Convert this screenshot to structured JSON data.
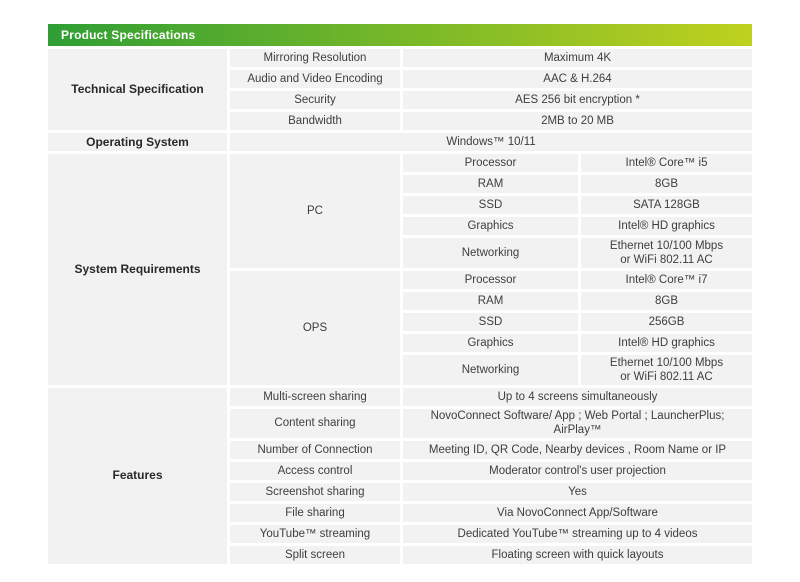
{
  "theme": {
    "brand-green": "#2f9e34",
    "brand-lime": "#bfd11e",
    "cell-bg": "#f2f2f3",
    "cell-text": "#3e3e40",
    "title-text": "#ffffff"
  },
  "header": {
    "title": "Product Specifications"
  },
  "table": {
    "sections": [
      {
        "title": "Technical Specification",
        "rows": [
          {
            "label": "Mirroring Resolution",
            "value": "Maximum 4K"
          },
          {
            "label": "Audio and Video Encoding",
            "value": "AAC & H.264"
          },
          {
            "label": "Security",
            "value": "AES 256 bit encryption *"
          },
          {
            "label": "Bandwidth",
            "value": "2MB to 20 MB"
          }
        ]
      },
      {
        "title": "Operating System",
        "value": "Windows™ 10/11"
      },
      {
        "title": "System Requirements",
        "groups": [
          {
            "name": "PC",
            "specs": [
              {
                "label": "Processor",
                "value": "Intel® Core™ i5"
              },
              {
                "label": "RAM",
                "value": "8GB"
              },
              {
                "label": "SSD",
                "value": "SATA 128GB"
              },
              {
                "label": "Graphics",
                "value": "Intel® HD graphics"
              },
              {
                "label": "Networking",
                "value": "Ethernet 10/100 Mbps\nor WiFi 802.11 AC"
              }
            ]
          },
          {
            "name": "OPS",
            "specs": [
              {
                "label": "Processor",
                "value": "Intel® Core™ i7"
              },
              {
                "label": "RAM",
                "value": "8GB"
              },
              {
                "label": "SSD",
                "value": "256GB"
              },
              {
                "label": "Graphics",
                "value": "Intel® HD graphics"
              },
              {
                "label": "Networking",
                "value": "Ethernet 10/100 Mbps\nor WiFi 802.11 AC"
              }
            ]
          }
        ]
      },
      {
        "title": "Features",
        "rows": [
          {
            "label": "Multi-screen sharing",
            "value": "Up to 4 screens simultaneously"
          },
          {
            "label": "Content sharing",
            "value": "NovoConnect Software/ App ; Web Portal ; LauncherPlus; AirPlay™"
          },
          {
            "label": "Number of Connection",
            "value": "Meeting ID, QR Code, Nearby devices , Room Name or IP"
          },
          {
            "label": "Access control",
            "value": "Moderator control's user projection"
          },
          {
            "label": "Screenshot sharing",
            "value": "Yes"
          },
          {
            "label": "File sharing",
            "value": "Via NovoConnect App/Software"
          },
          {
            "label": "YouTube™ streaming",
            "value": "Dedicated YouTube™ streaming up to 4 videos"
          },
          {
            "label": "Split screen",
            "value": "Floating screen with quick layouts"
          }
        ]
      }
    ]
  }
}
